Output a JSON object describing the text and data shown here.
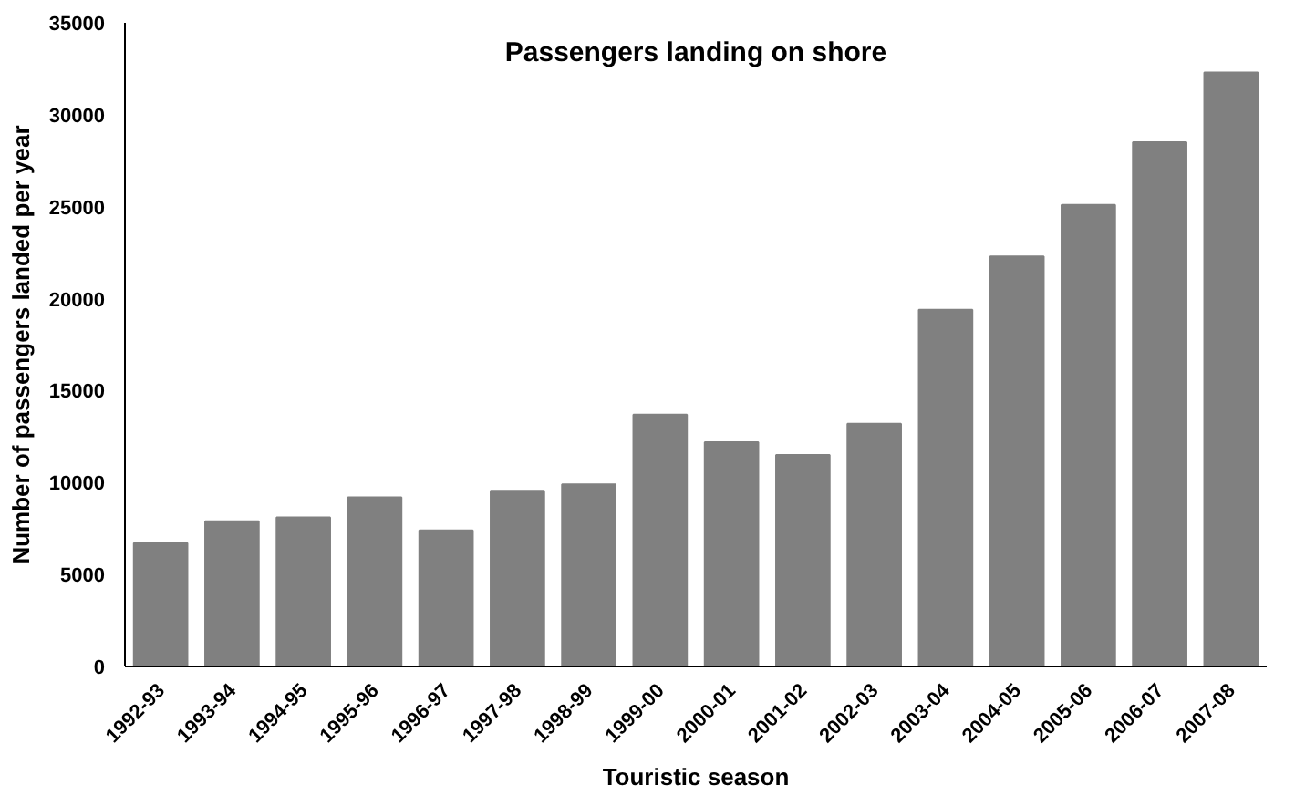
{
  "chart_data": {
    "type": "bar",
    "title": "Passengers landing on shore",
    "xlabel": "Touristic season",
    "ylabel": "Number of passengers landed per year",
    "categories": [
      "1992-93",
      "1993-94",
      "1994-95",
      "1995-96",
      "1996-97",
      "1997-98",
      "1998-99",
      "1999-00",
      "2000-01",
      "2001-02",
      "2002-03",
      "2003-04",
      "2004-05",
      "2005-06",
      "2006-07",
      "2007-08"
    ],
    "values": [
      6700,
      7900,
      8100,
      9200,
      7400,
      9500,
      9900,
      13700,
      12200,
      11500,
      13200,
      19400,
      22300,
      25100,
      28500,
      32300
    ],
    "color": "#808080",
    "ylim": [
      0,
      35000
    ],
    "yticks": [
      0,
      5000,
      10000,
      15000,
      20000,
      25000,
      30000,
      35000
    ],
    "grid": false
  }
}
